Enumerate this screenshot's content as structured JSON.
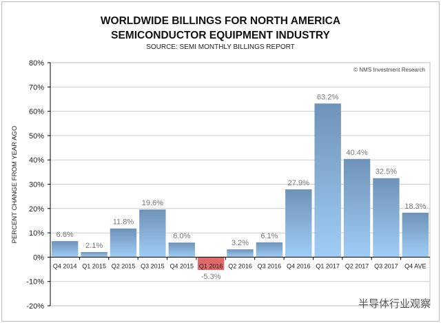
{
  "chart_data": {
    "type": "bar",
    "title": [
      "WORLDWIDE BILLINGS FOR NORTH AMERICA",
      "SEMICONDUCTOR EQUIPMENT INDUSTRY"
    ],
    "subtitle": "SOURCE: SEMI MONTHLY BILLINGS REPORT",
    "credit": "© NMS Investment Research",
    "ylabel": "PERCENT CHANGE FROM YEAR AGO",
    "xlabel": "",
    "ylim": [
      -20,
      80
    ],
    "yticks": [
      "80%",
      "70%",
      "60%",
      "50%",
      "40%",
      "30%",
      "20%",
      "10%",
      "0%",
      "-10%",
      "-20%"
    ],
    "grid": true,
    "categories": [
      "Q4 2014",
      "Q1 2015",
      "Q2 2015",
      "Q3 2015",
      "Q4 2015",
      "Q1 2016",
      "Q2 2016",
      "Q3 2016",
      "Q4 2016",
      "Q1 2017",
      "Q2 2017",
      "Q3 2017",
      "Q4 AVE"
    ],
    "values": [
      6.6,
      2.1,
      11.8,
      19.6,
      6.0,
      -5.3,
      3.2,
      6.1,
      27.9,
      63.2,
      40.4,
      32.5,
      18.3
    ],
    "labels": [
      "6.6%",
      "2.1%",
      "11.8%",
      "19.6%",
      "6.0%",
      "-5.3%",
      "3.2%",
      "6.1%",
      "27.9%",
      "63.2%",
      "40.4%",
      "32.5%",
      "18.3%"
    ],
    "colors": {
      "positive_top": "#6f93b8",
      "positive_bottom": "#9fcdf6",
      "negative": "#e06a6a"
    }
  },
  "watermark": "半导体行业观察"
}
